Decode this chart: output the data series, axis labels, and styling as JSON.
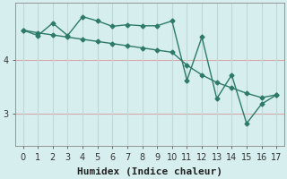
{
  "line1_x": [
    0,
    1,
    2,
    3,
    4,
    5,
    6,
    7,
    8,
    9,
    10,
    11,
    12,
    13,
    14,
    15,
    16,
    17
  ],
  "line1_y": [
    4.55,
    4.45,
    4.68,
    4.45,
    4.8,
    4.72,
    4.62,
    4.65,
    4.63,
    4.63,
    4.72,
    3.62,
    4.42,
    3.28,
    3.72,
    2.82,
    3.18,
    3.35
  ],
  "line2_x": [
    0,
    1,
    2,
    3,
    4,
    5,
    6,
    7,
    8,
    9,
    10,
    11,
    12,
    13,
    14,
    15,
    16,
    17
  ],
  "line2_y": [
    4.55,
    4.5,
    4.46,
    4.42,
    4.38,
    4.34,
    4.3,
    4.26,
    4.22,
    4.18,
    4.14,
    3.9,
    3.72,
    3.58,
    3.48,
    3.38,
    3.3,
    3.35
  ],
  "line_color": "#2d7a6a",
  "bg_color": "#d6eeee",
  "hgrid_color": "#d8a8a8",
  "vgrid_color": "#c0d8d8",
  "xlabel": "Humidex (Indice chaleur)",
  "xlim": [
    -0.5,
    17.5
  ],
  "ylim": [
    2.4,
    5.05
  ],
  "yticks": [
    3,
    4
  ],
  "xticks": [
    0,
    1,
    2,
    3,
    4,
    5,
    6,
    7,
    8,
    9,
    10,
    11,
    12,
    13,
    14,
    15,
    16,
    17
  ],
  "marker": "D",
  "markersize": 2.5,
  "linewidth": 1.0,
  "xlabel_fontsize": 8,
  "tick_fontsize": 7
}
